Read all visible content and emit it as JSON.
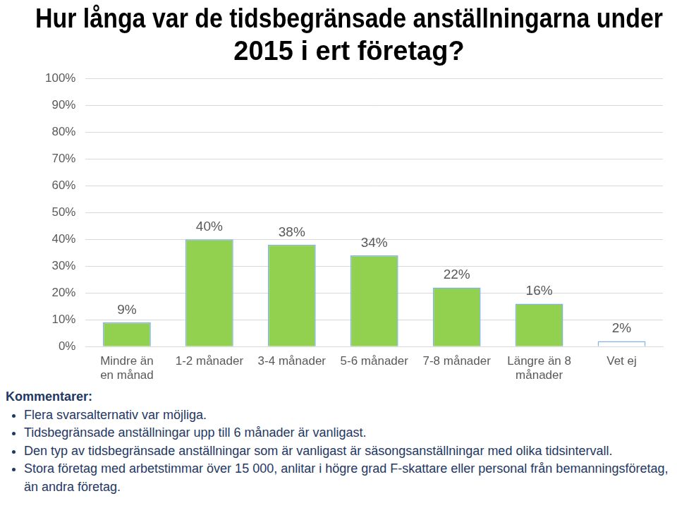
{
  "chart_data": {
    "type": "bar",
    "title": "Hur långa var de tidsbegränsade anställningarna under 2015 i ert företag?",
    "categories": [
      "Mindre än en månad",
      "1-2 månader",
      "3-4 månader",
      "5-6 månader",
      "7-8 månader",
      "Längre än 8 månader",
      "Vet ej"
    ],
    "values": [
      9,
      40,
      38,
      34,
      22,
      16,
      2
    ],
    "value_labels": [
      "9%",
      "40%",
      "38%",
      "34%",
      "22%",
      "16%",
      "2%"
    ],
    "data_labels": true,
    "colors": [
      "#92d050",
      "#92d050",
      "#92d050",
      "#92d050",
      "#92d050",
      "#92d050",
      "#ffffff"
    ],
    "ylim": [
      0,
      100
    ],
    "yticks": [
      {
        "value": 0,
        "label": "0%"
      },
      {
        "value": 10,
        "label": "10%"
      },
      {
        "value": 20,
        "label": "20%"
      },
      {
        "value": 30,
        "label": "30%"
      },
      {
        "value": 40,
        "label": "40%"
      },
      {
        "value": 50,
        "label": "50%"
      },
      {
        "value": 60,
        "label": "60%"
      },
      {
        "value": 70,
        "label": "70%"
      },
      {
        "value": 80,
        "label": "80%"
      },
      {
        "value": 90,
        "label": "90%"
      },
      {
        "value": 100,
        "label": "100%"
      }
    ],
    "grid": true
  },
  "notes": {
    "heading": "Kommentarer:",
    "items": [
      "Flera svarsalternativ var möjliga.",
      "Tidsbegränsade anställningar upp till 6 månader är vanligast.",
      "Den typ av tidsbegränsade anställningar som är vanligast är säsongsanställningar med olika tidsintervall.",
      "Stora företag med arbetstimmar över 15 000, anlitar i högre grad F-skattare eller personal från bemanningsföretag, än andra företag."
    ]
  }
}
